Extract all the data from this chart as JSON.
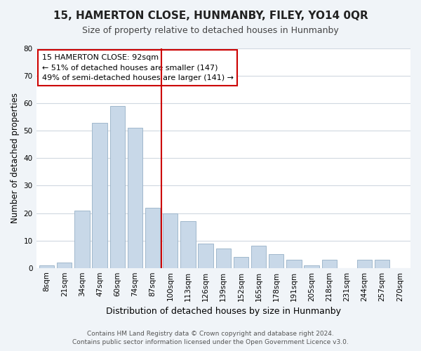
{
  "title": "15, HAMERTON CLOSE, HUNMANBY, FILEY, YO14 0QR",
  "subtitle": "Size of property relative to detached houses in Hunmanby",
  "xlabel": "Distribution of detached houses by size in Hunmanby",
  "ylabel": "Number of detached properties",
  "bar_labels": [
    "8sqm",
    "21sqm",
    "34sqm",
    "47sqm",
    "60sqm",
    "74sqm",
    "87sqm",
    "100sqm",
    "113sqm",
    "126sqm",
    "139sqm",
    "152sqm",
    "165sqm",
    "178sqm",
    "191sqm",
    "205sqm",
    "218sqm",
    "231sqm",
    "244sqm",
    "257sqm",
    "270sqm"
  ],
  "bar_values": [
    1,
    2,
    21,
    53,
    59,
    51,
    22,
    20,
    17,
    9,
    7,
    4,
    8,
    5,
    3,
    1,
    3,
    0,
    3,
    3,
    0
  ],
  "bar_color": "#c8d8e8",
  "bar_edge_color": "#a0b8cc",
  "vline_color": "#cc0000",
  "vline_pos": 6.5,
  "annotation_box_text": "15 HAMERTON CLOSE: 92sqm\n← 51% of detached houses are smaller (147)\n49% of semi-detached houses are larger (141) →",
  "box_edge_color": "#cc0000",
  "ylim": [
    0,
    80
  ],
  "yticks": [
    0,
    10,
    20,
    30,
    40,
    50,
    60,
    70,
    80
  ],
  "footer_line1": "Contains HM Land Registry data © Crown copyright and database right 2024.",
  "footer_line2": "Contains public sector information licensed under the Open Government Licence v3.0.",
  "bg_color": "#f0f4f8",
  "plot_bg_color": "#ffffff",
  "grid_color": "#d0d8e0"
}
